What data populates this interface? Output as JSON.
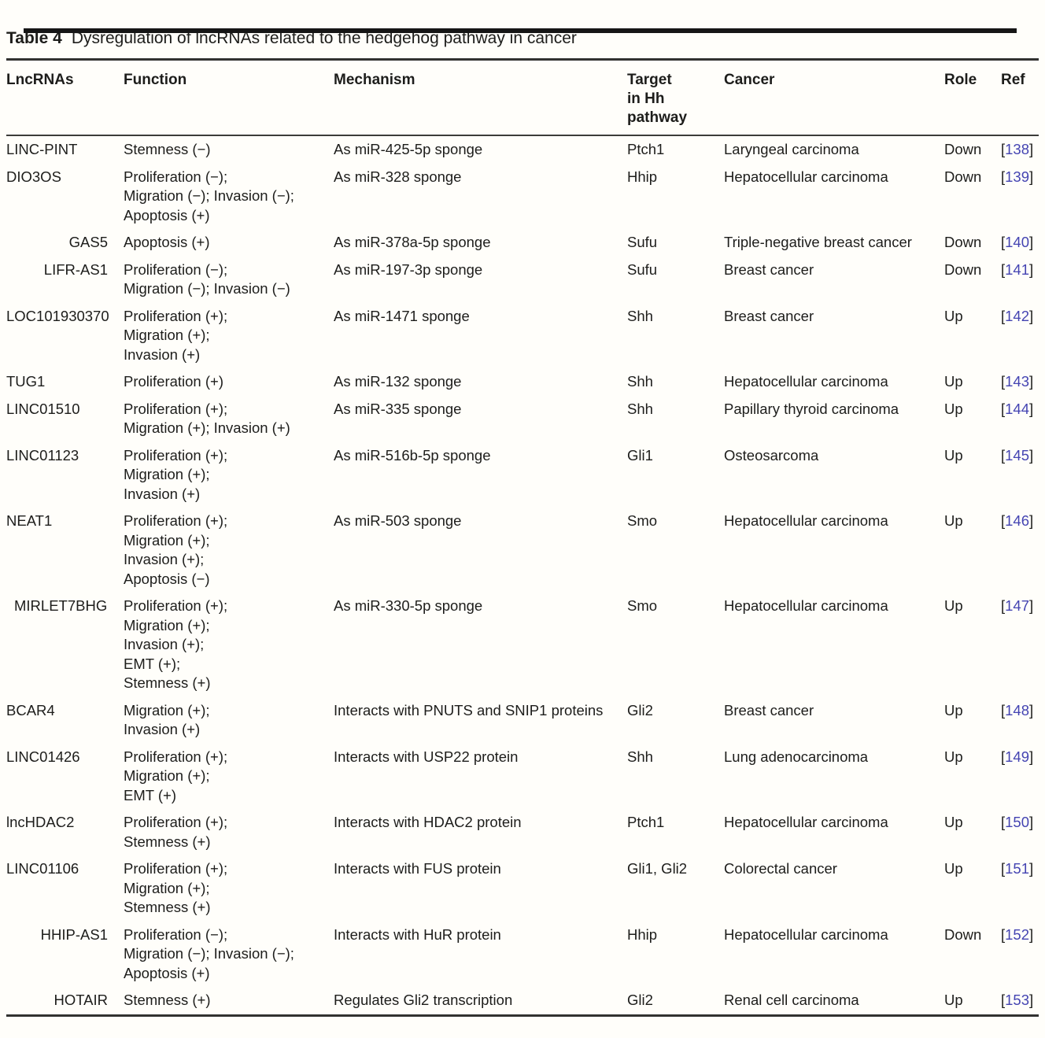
{
  "caption": {
    "label": "Table 4",
    "text": "Dysregulation of lncRNAs related to the hedgehog pathway in cancer"
  },
  "table": {
    "columns": [
      {
        "label": "LncRNAs"
      },
      {
        "label": "Function"
      },
      {
        "label": "Mechanism"
      },
      {
        "label": "Target\nin Hh\npathway"
      },
      {
        "label": "Cancer"
      },
      {
        "label": "Role"
      },
      {
        "label": "Ref"
      }
    ],
    "punctuation": {
      "ref_open": "[",
      "ref_close": "]"
    },
    "colors": {
      "ref_number": "#4444b2",
      "text": "#1d1d1b"
    },
    "rows": [
      {
        "lncrna": "LINC-PINT",
        "function_lines": [
          "Stemness (−)"
        ],
        "mechanism": "As miR-425-5p sponge",
        "target": "Ptch1",
        "cancer": "Laryngeal carcinoma",
        "role": "Down",
        "ref": "138"
      },
      {
        "lncrna": "DIO3OS",
        "function_lines": [
          "Proliferation (−);",
          "Migration (−); Invasion (−);",
          "Apoptosis (+)"
        ],
        "mechanism": "As miR-328 sponge",
        "target": "Hhip",
        "cancer": "Hepatocellular carcinoma",
        "role": "Down",
        "ref": "139"
      },
      {
        "lncrna": "GAS5",
        "align": "right",
        "function_lines": [
          "Apoptosis (+)"
        ],
        "mechanism": "As miR-378a-5p sponge",
        "target": "Sufu",
        "cancer": "Triple-negative breast cancer",
        "role": "Down",
        "ref": "140"
      },
      {
        "lncrna": "LIFR-AS1",
        "align": "right",
        "function_lines": [
          "Proliferation (−);",
          "Migration (−); Invasion (−)"
        ],
        "mechanism": "As miR-197-3p sponge",
        "target": "Sufu",
        "cancer": "Breast cancer",
        "role": "Down",
        "ref": "141"
      },
      {
        "lncrna": "LOC101930370",
        "function_lines": [
          "Proliferation (+);",
          "Migration (+);",
          "Invasion (+)"
        ],
        "mechanism": "As miR-1471 sponge",
        "target": "Shh",
        "cancer": "Breast cancer",
        "role": "Up",
        "ref": "142"
      },
      {
        "lncrna": "TUG1",
        "function_lines": [
          "Proliferation (+)"
        ],
        "mechanism": "As miR-132 sponge",
        "target": "Shh",
        "cancer": "Hepatocellular carcinoma",
        "role": "Up",
        "ref": "143"
      },
      {
        "lncrna": "LINC01510",
        "function_lines": [
          "Proliferation (+);",
          "Migration (+); Invasion (+)"
        ],
        "mechanism": "As miR-335 sponge",
        "target": "Shh",
        "cancer": "Papillary thyroid carcinoma",
        "role": "Up",
        "ref": "144"
      },
      {
        "lncrna": "LINC01123",
        "function_lines": [
          "Proliferation (+);",
          "Migration (+);",
          "Invasion (+)"
        ],
        "mechanism": "As miR-516b-5p sponge",
        "target": "Gli1",
        "cancer": "Osteosarcoma",
        "role": "Up",
        "ref": "145"
      },
      {
        "lncrna": "NEAT1",
        "function_lines": [
          "Proliferation (+);",
          "Migration (+);",
          "Invasion (+);",
          "Apoptosis (−)"
        ],
        "mechanism": "As miR-503 sponge",
        "target": "Smo",
        "cancer": "Hepatocellular carcinoma",
        "role": "Up",
        "ref": "146"
      },
      {
        "lncrna": "MIRLET7BHG",
        "align": "indent",
        "function_lines": [
          "Proliferation (+);",
          "Migration (+);",
          "Invasion (+);",
          "EMT (+);",
          "Stemness (+)"
        ],
        "mechanism": "As miR-330-5p sponge",
        "target": "Smo",
        "cancer": "Hepatocellular carcinoma",
        "role": "Up",
        "ref": "147"
      },
      {
        "lncrna": "BCAR4",
        "function_lines": [
          "Migration (+);",
          "Invasion (+)"
        ],
        "mechanism": "Interacts with PNUTS and SNIP1 proteins",
        "target": "Gli2",
        "cancer": "Breast cancer",
        "role": "Up",
        "ref": "148"
      },
      {
        "lncrna": "LINC01426",
        "function_lines": [
          "Proliferation (+);",
          "Migration (+);",
          "EMT (+)"
        ],
        "mechanism": "Interacts with USP22 protein",
        "target": "Shh",
        "cancer": "Lung adenocarcinoma",
        "role": "Up",
        "ref": "149"
      },
      {
        "lncrna": "lncHDAC2",
        "function_lines": [
          "Proliferation (+);",
          "Stemness (+)"
        ],
        "mechanism": "Interacts with HDAC2 protein",
        "target": "Ptch1",
        "cancer": "Hepatocellular carcinoma",
        "role": "Up",
        "ref": "150"
      },
      {
        "lncrna": "LINC01106",
        "function_lines": [
          "Proliferation (+);",
          "Migration (+);",
          "Stemness (+)"
        ],
        "mechanism": "Interacts with FUS protein",
        "target": "Gli1, Gli2",
        "cancer": "Colorectal cancer",
        "role": "Up",
        "ref": "151"
      },
      {
        "lncrna": "HHIP-AS1",
        "align": "right",
        "function_lines": [
          "Proliferation (−);",
          "Migration (−); Invasion (−);",
          "Apoptosis (+)"
        ],
        "mechanism": "Interacts with HuR protein",
        "target": "Hhip",
        "cancer": "Hepatocellular carcinoma",
        "role": "Down",
        "ref": "152"
      },
      {
        "lncrna": "HOTAIR",
        "align": "right",
        "function_lines": [
          "Stemness (+)"
        ],
        "mechanism": "Regulates Gli2 transcription",
        "target": "Gli2",
        "cancer": "Renal cell carcinoma",
        "role": "Up",
        "ref": "153"
      }
    ]
  }
}
